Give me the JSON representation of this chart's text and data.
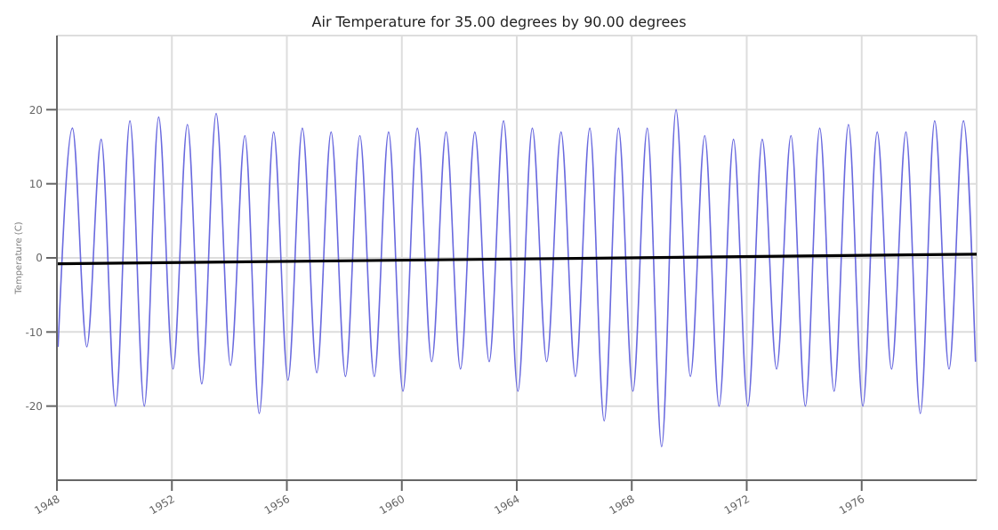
{
  "chart_data": {
    "type": "line",
    "title": "Air Temperature for 35.00 degrees by 90.00 degrees",
    "ylabel": "Temperature (C)",
    "xlim": [
      1948,
      1980
    ],
    "xticks": [
      1948,
      1952,
      1956,
      1960,
      1964,
      1968,
      1972,
      1976
    ],
    "ylim": [
      -30,
      30
    ],
    "yticks": [
      -20,
      -10,
      0,
      10,
      20
    ],
    "grid": true,
    "marker": "none",
    "line_style": "solid",
    "series": [
      {
        "color": "#6a6adf",
        "x": [
          1948.04,
          1948.54,
          1949.04,
          1949.54,
          1950.04,
          1950.54,
          1951.04,
          1951.54,
          1952.04,
          1952.54,
          1953.04,
          1953.54,
          1954.04,
          1954.54,
          1955.04,
          1955.54,
          1956.04,
          1956.54,
          1957.04,
          1957.54,
          1958.04,
          1958.54,
          1959.04,
          1959.54,
          1960.04,
          1960.54,
          1961.04,
          1961.54,
          1962.04,
          1962.54,
          1963.04,
          1963.54,
          1964.04,
          1964.54,
          1965.04,
          1965.54,
          1966.04,
          1966.54,
          1967.04,
          1967.54,
          1968.04,
          1968.54,
          1969.04,
          1969.54,
          1970.04,
          1970.54,
          1971.04,
          1971.54,
          1972.04,
          1972.54,
          1973.04,
          1973.54,
          1974.04,
          1974.54,
          1975.04,
          1975.54,
          1976.04,
          1976.54,
          1977.04,
          1977.54,
          1978.04,
          1978.54,
          1979.04,
          1979.54,
          1979.96
        ],
        "values": [
          -12,
          17.5,
          -12,
          16,
          -20,
          18.5,
          -20,
          19,
          -15,
          18,
          -17,
          19.5,
          -14.5,
          16.5,
          -21,
          17,
          -16.5,
          17.5,
          -15.5,
          17,
          -16,
          16.5,
          -16,
          17,
          -18,
          17.5,
          -14,
          17,
          -15,
          17,
          -14,
          18.5,
          -18,
          17.5,
          -14,
          17,
          -16,
          17.5,
          -22,
          17.5,
          -18,
          17.5,
          -25.5,
          20,
          -16,
          16.5,
          -20,
          16,
          -20,
          16,
          -15,
          16.5,
          -20,
          17.5,
          -18,
          18,
          -20,
          17,
          -15,
          17,
          -21,
          18.5,
          -15,
          18.5,
          -14
        ]
      },
      {
        "color": "#000000",
        "x": [
          1948,
          1980
        ],
        "values": [
          -0.8,
          0.5
        ]
      }
    ]
  }
}
